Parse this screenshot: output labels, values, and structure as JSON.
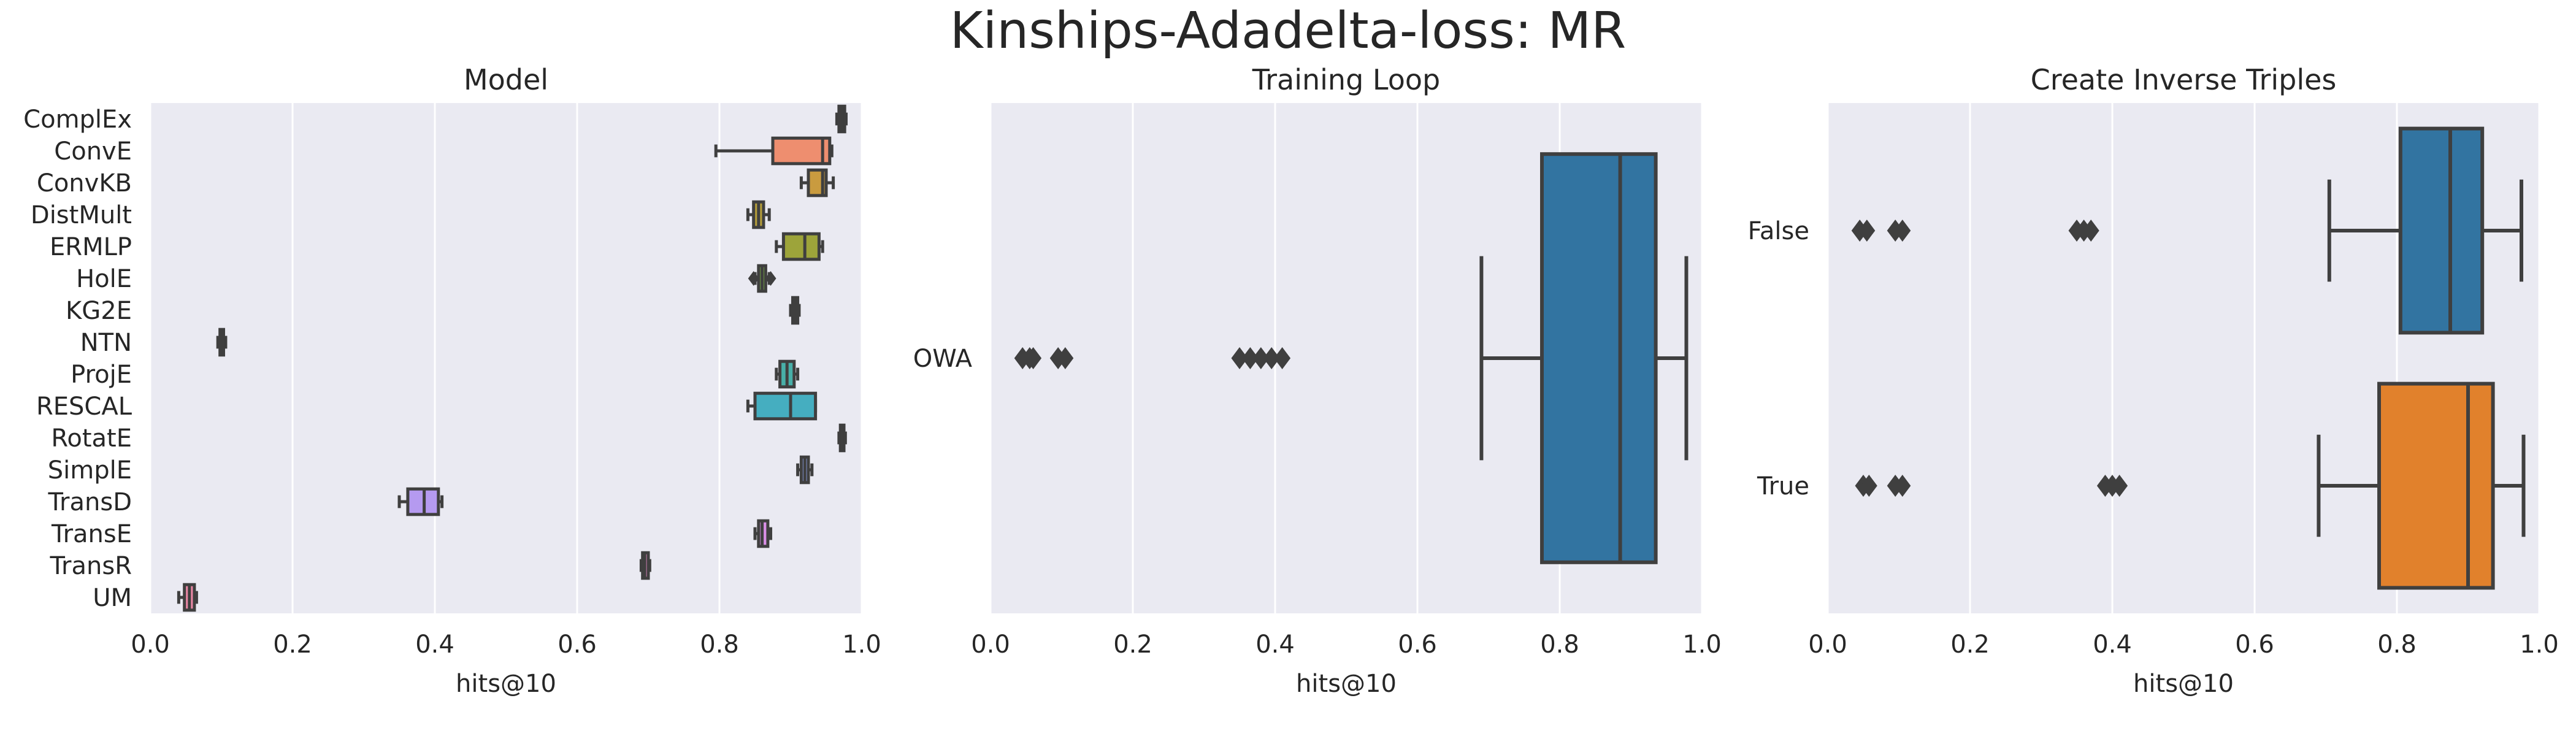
{
  "figure": {
    "title": "Kinships-Adadelta-loss: MR"
  },
  "colors": {
    "plot_background": "#EAEAF2",
    "grid": "#FFFFFF",
    "box_edge": "#3F3F3F",
    "text": "#262626"
  },
  "chart_data": [
    {
      "type": "boxplot",
      "orientation": "horizontal",
      "title": "Model",
      "xlabel": "hits@10",
      "ylabel": "",
      "xlim": [
        0.0,
        1.0
      ],
      "xticks": [
        "0.0",
        "0.2",
        "0.4",
        "0.6",
        "0.8",
        "1.0"
      ],
      "grid": true,
      "categories": [
        "ComplEx",
        "ConvE",
        "ConvKB",
        "DistMult",
        "ERMLP",
        "HolE",
        "KG2E",
        "NTN",
        "ProjE",
        "RESCAL",
        "RotatE",
        "SimplE",
        "TransD",
        "TransE",
        "TransR",
        "UM"
      ],
      "boxes": [
        {
          "category": "ComplEx",
          "color": "#E5827A",
          "whislo": 0.965,
          "q1": 0.968,
          "med": 0.972,
          "q3": 0.976,
          "whishi": 0.978,
          "fliers": []
        },
        {
          "category": "ConvE",
          "color": "#EE8E6F",
          "whislo": 0.795,
          "q1": 0.875,
          "med": 0.945,
          "q3": 0.955,
          "whishi": 0.958,
          "fliers": []
        },
        {
          "category": "ConvKB",
          "color": "#C99B3F",
          "whislo": 0.915,
          "q1": 0.925,
          "med": 0.945,
          "q3": 0.95,
          "whishi": 0.96,
          "fliers": []
        },
        {
          "category": "DistMult",
          "color": "#B59E3A",
          "whislo": 0.84,
          "q1": 0.848,
          "med": 0.855,
          "q3": 0.862,
          "whishi": 0.87,
          "fliers": []
        },
        {
          "category": "ERMLP",
          "color": "#9DA43A",
          "whislo": 0.88,
          "q1": 0.89,
          "med": 0.92,
          "q3": 0.94,
          "whishi": 0.945,
          "fliers": []
        },
        {
          "category": "HolE",
          "color": "#78AC45",
          "whislo": 0.85,
          "q1": 0.855,
          "med": 0.86,
          "q3": 0.865,
          "whishi": 0.87,
          "fliers": [
            0.848,
            0.872
          ]
        },
        {
          "category": "KG2E",
          "color": "#4FB068",
          "whislo": 0.9,
          "q1": 0.903,
          "med": 0.907,
          "q3": 0.91,
          "whishi": 0.912,
          "fliers": []
        },
        {
          "category": "NTN",
          "color": "#44B294",
          "whislo": 0.095,
          "q1": 0.098,
          "med": 0.1,
          "q3": 0.103,
          "whishi": 0.106,
          "fliers": []
        },
        {
          "category": "ProjE",
          "color": "#48AFA8",
          "whislo": 0.88,
          "q1": 0.885,
          "med": 0.895,
          "q3": 0.905,
          "whishi": 0.91,
          "fliers": []
        },
        {
          "category": "RESCAL",
          "color": "#45AEC0",
          "whislo": 0.84,
          "q1": 0.85,
          "med": 0.9,
          "q3": 0.935,
          "whishi": 0.935,
          "fliers": []
        },
        {
          "category": "RotatE",
          "color": "#54A8D8",
          "whislo": 0.968,
          "q1": 0.97,
          "med": 0.972,
          "q3": 0.975,
          "whishi": 0.977,
          "fliers": []
        },
        {
          "category": "SimplE",
          "color": "#8EA2E8",
          "whislo": 0.91,
          "q1": 0.915,
          "med": 0.92,
          "q3": 0.925,
          "whishi": 0.93,
          "fliers": []
        },
        {
          "category": "TransD",
          "color": "#B59AF0",
          "whislo": 0.35,
          "q1": 0.362,
          "med": 0.385,
          "q3": 0.405,
          "whishi": 0.41,
          "fliers": []
        },
        {
          "category": "TransE",
          "color": "#D98FE6",
          "whislo": 0.85,
          "q1": 0.855,
          "med": 0.86,
          "q3": 0.868,
          "whishi": 0.872,
          "fliers": []
        },
        {
          "category": "TransR",
          "color": "#E98AC7",
          "whislo": 0.69,
          "q1": 0.692,
          "med": 0.695,
          "q3": 0.7,
          "whishi": 0.702,
          "fliers": []
        },
        {
          "category": "UM",
          "color": "#EA87A5",
          "whislo": 0.04,
          "q1": 0.048,
          "med": 0.055,
          "q3": 0.062,
          "whishi": 0.065,
          "fliers": []
        }
      ]
    },
    {
      "type": "boxplot",
      "orientation": "horizontal",
      "title": "Training Loop",
      "xlabel": "hits@10",
      "ylabel": "",
      "xlim": [
        0.0,
        1.0
      ],
      "xticks": [
        "0.0",
        "0.2",
        "0.4",
        "0.6",
        "0.8",
        "1.0"
      ],
      "grid": true,
      "categories": [
        "OWA"
      ],
      "boxes": [
        {
          "category": "OWA",
          "color": "#3274A1",
          "whislo": 0.69,
          "q1": 0.775,
          "med": 0.885,
          "q3": 0.935,
          "whishi": 0.978,
          "fliers": [
            0.045,
            0.055,
            0.06,
            0.095,
            0.105,
            0.35,
            0.365,
            0.38,
            0.395,
            0.41
          ]
        }
      ]
    },
    {
      "type": "boxplot",
      "orientation": "horizontal",
      "title": "Create Inverse Triples",
      "xlabel": "hits@10",
      "ylabel": "",
      "xlim": [
        0.0,
        1.0
      ],
      "xticks": [
        "0.0",
        "0.2",
        "0.4",
        "0.6",
        "0.8",
        "1.0"
      ],
      "grid": true,
      "categories": [
        "False",
        "True"
      ],
      "boxes": [
        {
          "category": "False",
          "color": "#3274A1",
          "whislo": 0.705,
          "q1": 0.805,
          "med": 0.875,
          "q3": 0.92,
          "whishi": 0.975,
          "fliers": [
            0.045,
            0.055,
            0.095,
            0.105,
            0.35,
            0.36,
            0.37
          ]
        },
        {
          "category": "True",
          "color": "#E1812C",
          "whislo": 0.69,
          "q1": 0.775,
          "med": 0.9,
          "q3": 0.935,
          "whishi": 0.978,
          "fliers": [
            0.05,
            0.058,
            0.095,
            0.105,
            0.39,
            0.4,
            0.41
          ]
        }
      ]
    }
  ]
}
